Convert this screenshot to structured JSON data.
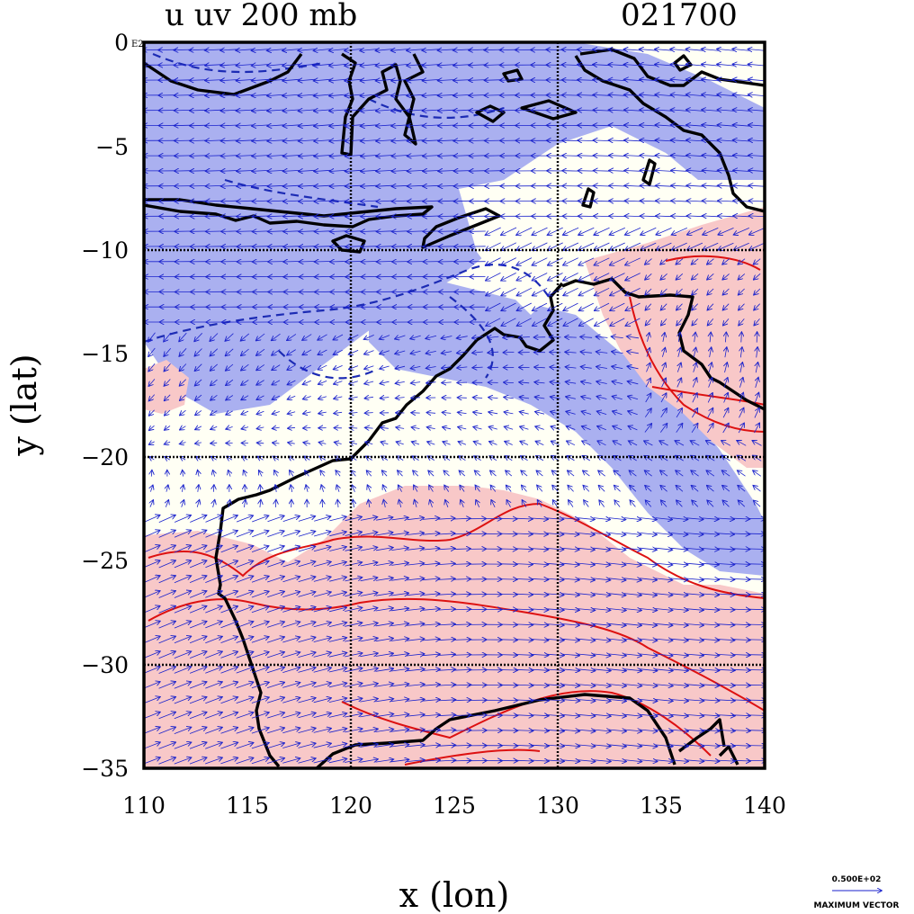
{
  "title_left": "u uv 200 mb",
  "title_right": "021700",
  "x_axis_label": "x (lon)",
  "y_axis_label": "y (lat)",
  "x_ticks": [
    "110",
    "115",
    "120",
    "125",
    "130",
    "135",
    "140"
  ],
  "y_ticks": [
    "0",
    "−5",
    "−10",
    "−15",
    "−20",
    "−25",
    "−30",
    "−35"
  ],
  "corner_tag": "E2",
  "legend": {
    "value": "0.500E+02",
    "caption": "MAXIMUM VECTOR"
  },
  "chart_data": {
    "type": "map",
    "variable": "u wind and uv vectors at 200 mb",
    "time": "021700",
    "lon_range": [
      110,
      140
    ],
    "lat_range": [
      -35,
      0
    ],
    "gridlines_lon": [
      120,
      130
    ],
    "gridlines_lat": [
      -10,
      -20,
      -30
    ],
    "colors": {
      "negative_fill": "#aab0f0",
      "positive_fill": "#f8c8c8",
      "neutral_fill": "#fffff4",
      "negative_contour": "#1c2bb4",
      "positive_contour": "#dd1111",
      "coastline": "#000000",
      "vector": "#1a22cc"
    }
  }
}
